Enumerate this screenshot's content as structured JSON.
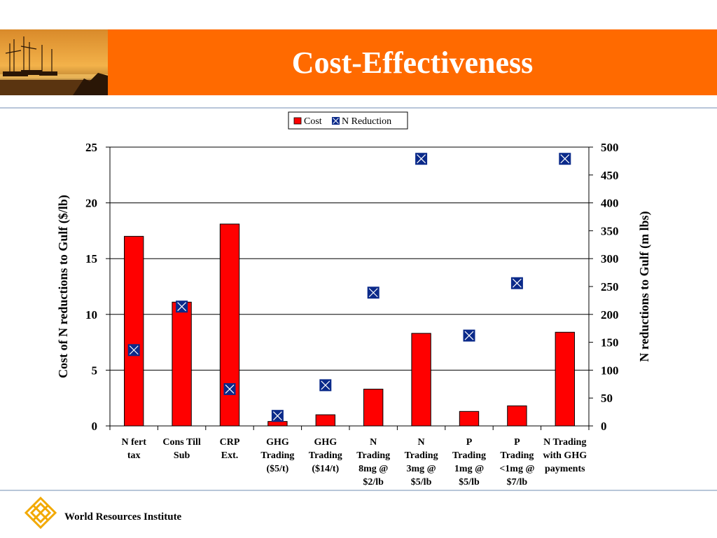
{
  "slide": {
    "title": "Cost-Effectiveness",
    "organization": "World Resources Institute",
    "photo": "harbor-sunset-photo",
    "logo": "wri-logo",
    "colors": {
      "banner": "#ff6a00",
      "bar": "#ff0000",
      "marker": "#0b2a8a",
      "rule": "#b8c6d9"
    }
  },
  "chart_data": {
    "type": "bar",
    "categories": [
      [
        "N fert",
        "tax"
      ],
      [
        "Cons Till",
        "Sub"
      ],
      [
        "CRP",
        "Ext."
      ],
      [
        "GHG",
        "Trading",
        "($5/t)"
      ],
      [
        "GHG",
        "Trading",
        "($14/t)"
      ],
      [
        "N",
        "Trading",
        "8mg @",
        "$2/lb"
      ],
      [
        "N",
        "Trading",
        "3mg @",
        "$5/lb"
      ],
      [
        "P",
        "Trading",
        "1mg @",
        "$5/lb"
      ],
      [
        "P",
        "Trading",
        "<1mg @",
        "$7/lb"
      ],
      [
        "N Trading",
        "with GHG",
        "payments"
      ]
    ],
    "series": [
      {
        "name": "Cost",
        "type": "bar",
        "axis": "left",
        "values": [
          17,
          11.1,
          18.1,
          0.4,
          1.0,
          3.3,
          8.3,
          1.3,
          1.8,
          8.4
        ]
      },
      {
        "name": "N Reduction",
        "type": "marker",
        "axis": "right",
        "values": [
          136,
          214,
          66,
          18,
          73,
          239,
          479,
          162,
          256,
          479
        ]
      }
    ],
    "ylabel": "Cost of N reductions to Gulf ($/lb)",
    "y2label": "N reductions to Gulf (m lbs)",
    "ylim": [
      0,
      25
    ],
    "y2lim": [
      0,
      500
    ],
    "yticks": [
      "0",
      "5",
      "10",
      "15",
      "20",
      "25"
    ],
    "y2ticks": [
      "0",
      "50",
      "100",
      "150",
      "200",
      "250",
      "300",
      "350",
      "400",
      "450",
      "500"
    ],
    "grid": true,
    "legend": "top-center"
  }
}
